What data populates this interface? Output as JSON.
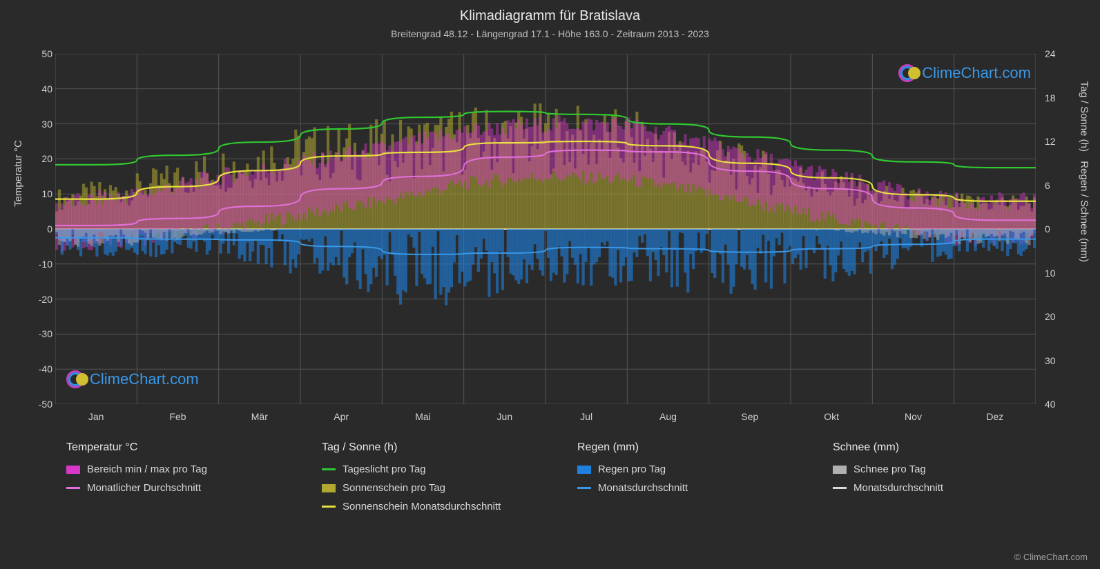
{
  "title": "Klimadiagramm für Bratislava",
  "subtitle": "Breitengrad 48.12 - Längengrad 17.1 - Höhe 163.0 - Zeitraum 2013 - 2023",
  "axis_labels": {
    "left": "Temperatur °C",
    "right_top": "Tag / Sonne (h)",
    "right_bot": "Regen / Schnee (mm)"
  },
  "chart": {
    "type": "climate-composite",
    "background_color": "#2a2a2a",
    "grid_color": "#555555",
    "zero_line_color": "#e8e8e8",
    "text_color": "#d0d0d0",
    "months": [
      "Jan",
      "Feb",
      "Mär",
      "Apr",
      "Mai",
      "Jun",
      "Jul",
      "Aug",
      "Sep",
      "Okt",
      "Nov",
      "Dez"
    ],
    "temp_axis": {
      "min": -50,
      "max": 50,
      "step": 10
    },
    "hours_axis": {
      "min": 0,
      "max": 24,
      "step": 6
    },
    "precip_axis": {
      "min": 0,
      "max": 40,
      "step": 10
    },
    "colors": {
      "temp_range": "#d838c8",
      "temp_avg": "#e070d8",
      "daylight": "#30c830",
      "sunshine_bars": "#b0a830",
      "sunshine_avg": "#e8e040",
      "rain_bars": "#2080e0",
      "rain_avg": "#3898e8",
      "snow_bars": "#b0b0b0",
      "snow_avg": "#d8d8d8"
    },
    "daylight_h": [
      8.8,
      10.1,
      11.9,
      13.7,
      15.3,
      16.1,
      15.7,
      14.4,
      12.6,
      10.8,
      9.2,
      8.4
    ],
    "sunshine_avg_h": [
      4.1,
      5.8,
      8.0,
      10.0,
      10.5,
      11.8,
      12.0,
      11.4,
      9.0,
      7.0,
      4.7,
      3.8
    ],
    "temp_avg_c": [
      1.0,
      3.0,
      6.5,
      11.5,
      15.0,
      20.5,
      22.5,
      22.0,
      16.5,
      11.5,
      6.0,
      2.5
    ],
    "rain_avg_mm": [
      2.0,
      2.3,
      2.5,
      4.0,
      5.8,
      5.5,
      4.2,
      4.5,
      5.3,
      4.5,
      3.5,
      2.3
    ],
    "temp_min_c": [
      -5,
      -3,
      0,
      4,
      8,
      13,
      15,
      14,
      10,
      5,
      1,
      -3
    ],
    "temp_max_c": [
      7,
      10,
      15,
      19,
      23,
      28,
      30,
      30,
      24,
      18,
      12,
      8
    ],
    "sunshine_daily_h": [
      4.0,
      5.5,
      8.2,
      10.3,
      10.8,
      12.2,
      12.5,
      11.8,
      9.2,
      7.0,
      4.5,
      3.5
    ],
    "rain_daily_mm": [
      3,
      3,
      3,
      5,
      8,
      8,
      6,
      6,
      7,
      6,
      5,
      3
    ],
    "snow_daily_mm": [
      2,
      1.5,
      0.5,
      0,
      0,
      0,
      0,
      0,
      0,
      0,
      0.5,
      1.5
    ]
  },
  "legend": {
    "col1": {
      "title": "Temperatur °C",
      "items": [
        {
          "swatch": "block",
          "color": "#d838c8",
          "label": "Bereich min / max pro Tag"
        },
        {
          "swatch": "line",
          "color": "#e070d8",
          "label": "Monatlicher Durchschnitt"
        }
      ]
    },
    "col2": {
      "title": "Tag / Sonne (h)",
      "items": [
        {
          "swatch": "line",
          "color": "#30c830",
          "label": "Tageslicht pro Tag"
        },
        {
          "swatch": "block",
          "color": "#b0a830",
          "label": "Sonnenschein pro Tag"
        },
        {
          "swatch": "line",
          "color": "#e8e040",
          "label": "Sonnenschein Monatsdurchschnitt"
        }
      ]
    },
    "col3": {
      "title": "Regen (mm)",
      "items": [
        {
          "swatch": "block",
          "color": "#2080e0",
          "label": "Regen pro Tag"
        },
        {
          "swatch": "line",
          "color": "#3898e8",
          "label": "Monatsdurchschnitt"
        }
      ]
    },
    "col4": {
      "title": "Schnee (mm)",
      "items": [
        {
          "swatch": "block",
          "color": "#b0b0b0",
          "label": "Schnee pro Tag"
        },
        {
          "swatch": "line",
          "color": "#d8d8d8",
          "label": "Monatsdurchschnitt"
        }
      ]
    }
  },
  "watermark": {
    "text": "ClimeChart.com",
    "color": "#3898e8"
  },
  "copyright": "© ClimeChart.com"
}
